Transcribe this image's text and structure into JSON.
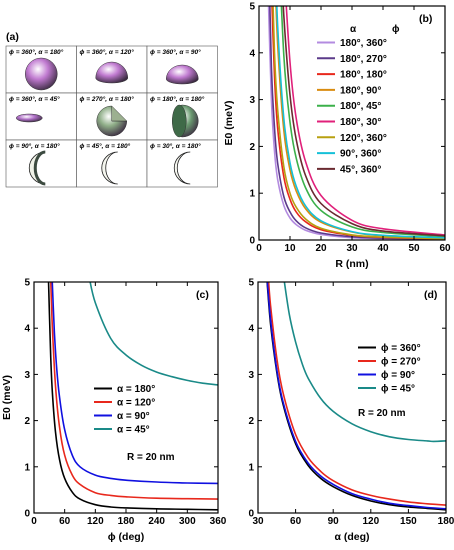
{
  "panel_a": {
    "label": "(a)",
    "shapes": [
      {
        "label": "ϕ = 360°, α = 180°",
        "kind": "sphere",
        "color": "#c07ad0"
      },
      {
        "label": "ϕ = 360°, α = 120°",
        "kind": "cap-large",
        "color": "#c07ad0"
      },
      {
        "label": "ϕ = 360°, α = 90°",
        "kind": "hemisphere",
        "color": "#c07ad0"
      },
      {
        "label": "ϕ = 360°, α = 45°",
        "kind": "flat-cap",
        "color": "#b070c8"
      },
      {
        "label": "ϕ = 270°, α = 180°",
        "kind": "sphere-cut",
        "color": "#8fae88"
      },
      {
        "label": "ϕ = 180°, α = 180°",
        "kind": "half-sphere",
        "color": "#6a9a70"
      },
      {
        "label": "ϕ = 90°, α = 180°",
        "kind": "wedge",
        "color": "#3c4a40"
      },
      {
        "label": "ϕ = 45°, α = 180°",
        "kind": "thin-wedge",
        "color": "#cfd8c0"
      },
      {
        "label": "ϕ = 30°, α = 180°",
        "kind": "sliver",
        "color": "#c8d0b8"
      }
    ]
  },
  "chart_data": [
    {
      "panel": "(b)",
      "type": "line",
      "xlabel": "R (nm)",
      "ylabel": "E0 (meV)",
      "xlim": [
        0,
        60
      ],
      "ylim": [
        0,
        5
      ],
      "xticks": [
        0,
        10,
        20,
        30,
        40,
        50,
        60
      ],
      "yticks": [
        0,
        1,
        2,
        3,
        4,
        5
      ],
      "legend_header": [
        "α",
        "ϕ"
      ],
      "legend_placement": "top-right",
      "series": [
        {
          "name": "180°,  360°",
          "color": "#b38be0",
          "x": [
            3,
            4,
            5,
            6,
            8,
            10,
            12,
            15,
            20,
            30,
            40,
            60
          ],
          "y": [
            5.2,
            3.0,
            1.9,
            1.3,
            0.74,
            0.47,
            0.33,
            0.21,
            0.12,
            0.05,
            0.03,
            0.01
          ]
        },
        {
          "name": "180°,  270°",
          "color": "#5b3a8a",
          "x": [
            3,
            4,
            5,
            6,
            8,
            10,
            12,
            15,
            20,
            30,
            40,
            60
          ],
          "y": [
            6.5,
            3.7,
            2.4,
            1.65,
            0.93,
            0.6,
            0.41,
            0.26,
            0.15,
            0.07,
            0.04,
            0.02
          ]
        },
        {
          "name": "180°,  180°",
          "color": "#e8281c",
          "x": [
            4,
            5,
            6,
            8,
            10,
            12,
            15,
            20,
            30,
            40,
            60
          ],
          "y": [
            5.4,
            3.5,
            2.4,
            1.35,
            0.87,
            0.6,
            0.39,
            0.22,
            0.1,
            0.055,
            0.025
          ]
        },
        {
          "name": "180°,  90°",
          "color": "#d98c10",
          "x": [
            5,
            6,
            8,
            10,
            12,
            15,
            20,
            30,
            40,
            60
          ],
          "y": [
            6.0,
            4.2,
            2.35,
            1.5,
            1.05,
            0.67,
            0.38,
            0.17,
            0.09,
            0.04
          ]
        },
        {
          "name": "180°,  45°",
          "color": "#3bb04a",
          "x": [
            6,
            8,
            10,
            12,
            15,
            20,
            30,
            40,
            60
          ],
          "y": [
            7.0,
            3.95,
            2.52,
            1.75,
            1.12,
            0.63,
            0.28,
            0.16,
            0.07
          ]
        },
        {
          "name": "180°,  30°",
          "color": "#e0207a",
          "x": [
            8,
            10,
            12,
            15,
            20,
            30,
            40,
            60
          ],
          "y": [
            5.9,
            3.8,
            2.6,
            1.68,
            0.95,
            0.42,
            0.24,
            0.11
          ]
        },
        {
          "name": "120°,  360°",
          "color": "#b8a010",
          "x": [
            4,
            5,
            6,
            8,
            10,
            12,
            15,
            20,
            30,
            40,
            60
          ],
          "y": [
            6.3,
            4.0,
            2.8,
            1.57,
            1.0,
            0.7,
            0.45,
            0.25,
            0.11,
            0.063,
            0.028
          ]
        },
        {
          "name": "90°,   360°",
          "color": "#15c0d8",
          "x": [
            5,
            6,
            8,
            10,
            12,
            15,
            20,
            30,
            40,
            60
          ],
          "y": [
            6.6,
            4.6,
            2.6,
            1.65,
            1.15,
            0.73,
            0.41,
            0.18,
            0.1,
            0.046
          ]
        },
        {
          "name": "45°,   360°",
          "color": "#6a2a30",
          "x": [
            7,
            8,
            10,
            12,
            15,
            20,
            30,
            40,
            60
          ],
          "y": [
            6.3,
            4.8,
            3.1,
            2.15,
            1.38,
            0.78,
            0.35,
            0.19,
            0.09
          ]
        }
      ]
    },
    {
      "panel": "(c)",
      "type": "line",
      "xlabel": "ϕ (deg)",
      "ylabel": "E0 (meV)",
      "xlim": [
        0,
        360
      ],
      "ylim": [
        0,
        5
      ],
      "xticks": [
        0,
        60,
        120,
        180,
        240,
        300,
        360
      ],
      "yticks": [
        0,
        1,
        2,
        3,
        4,
        5
      ],
      "annotation": "R = 20 nm",
      "legend_placement": "center-right",
      "series": [
        {
          "name": "α  =  180°",
          "color": "#000000",
          "x": [
            28,
            32,
            36,
            42,
            50,
            60,
            75,
            90,
            120,
            150,
            180,
            240,
            300,
            360
          ],
          "y": [
            5.2,
            3.6,
            2.6,
            1.75,
            1.15,
            0.75,
            0.45,
            0.3,
            0.18,
            0.13,
            0.11,
            0.09,
            0.08,
            0.07
          ]
        },
        {
          "name": "α  =  120°",
          "color": "#e8281c",
          "x": [
            32,
            36,
            42,
            50,
            60,
            75,
            90,
            120,
            150,
            180,
            240,
            300,
            360
          ],
          "y": [
            5.3,
            4.0,
            2.75,
            1.85,
            1.25,
            0.82,
            0.62,
            0.44,
            0.38,
            0.35,
            0.32,
            0.31,
            0.3
          ]
        },
        {
          "name": "α  =  90°",
          "color": "#1010e0",
          "x": [
            35,
            40,
            45,
            50,
            60,
            75,
            90,
            120,
            150,
            180,
            240,
            300,
            360
          ],
          "y": [
            5.2,
            3.9,
            3.05,
            2.5,
            1.8,
            1.25,
            1.0,
            0.82,
            0.75,
            0.71,
            0.67,
            0.65,
            0.64
          ]
        },
        {
          "name": "α  =  45°",
          "color": "#1a8a88",
          "x": [
            108,
            120,
            150,
            180,
            210,
            240,
            270,
            300,
            330,
            360
          ],
          "y": [
            5.1,
            4.55,
            3.78,
            3.42,
            3.2,
            3.05,
            2.95,
            2.87,
            2.81,
            2.77
          ]
        }
      ]
    },
    {
      "panel": "(d)",
      "type": "line",
      "xlabel": "α  (deg)",
      "ylabel": "",
      "xlim": [
        30,
        180
      ],
      "ylim": [
        0,
        5
      ],
      "xticks": [
        30,
        60,
        90,
        120,
        150,
        180
      ],
      "yticks": [
        0,
        1,
        2,
        3,
        4,
        5
      ],
      "annotation": "R = 20 nm",
      "legend_placement": "top-right",
      "series": [
        {
          "name": "ϕ  =  360°",
          "color": "#000000",
          "x": [
            37,
            40,
            45,
            50,
            60,
            70,
            80,
            90,
            105,
            120,
            135,
            150,
            165,
            180
          ],
          "y": [
            5.1,
            4.1,
            3.05,
            2.35,
            1.5,
            1.03,
            0.75,
            0.57,
            0.38,
            0.26,
            0.18,
            0.13,
            0.1,
            0.07
          ]
        },
        {
          "name": "ϕ  =  270°",
          "color": "#e8281c",
          "x": [
            38,
            40,
            45,
            50,
            60,
            70,
            80,
            90,
            105,
            120,
            135,
            150,
            165,
            180
          ],
          "y": [
            5.2,
            4.5,
            3.35,
            2.6,
            1.7,
            1.2,
            0.9,
            0.7,
            0.5,
            0.38,
            0.3,
            0.24,
            0.2,
            0.17
          ]
        },
        {
          "name": "ϕ  =  90°",
          "color": "#1010e0",
          "x": [
            37,
            40,
            45,
            50,
            60,
            70,
            80,
            90,
            105,
            120,
            135,
            150,
            165,
            180
          ],
          "y": [
            5.15,
            4.2,
            3.1,
            2.4,
            1.55,
            1.08,
            0.8,
            0.62,
            0.42,
            0.3,
            0.21,
            0.16,
            0.12,
            0.09
          ]
        },
        {
          "name": "ϕ  =  45°",
          "color": "#1a8a88",
          "x": [
            50,
            55,
            60,
            65,
            70,
            80,
            90,
            105,
            120,
            135,
            150,
            165,
            170,
            180
          ],
          "y": [
            5.2,
            4.3,
            3.7,
            3.25,
            2.92,
            2.48,
            2.2,
            1.93,
            1.76,
            1.65,
            1.59,
            1.56,
            1.55,
            1.56
          ]
        }
      ]
    }
  ]
}
